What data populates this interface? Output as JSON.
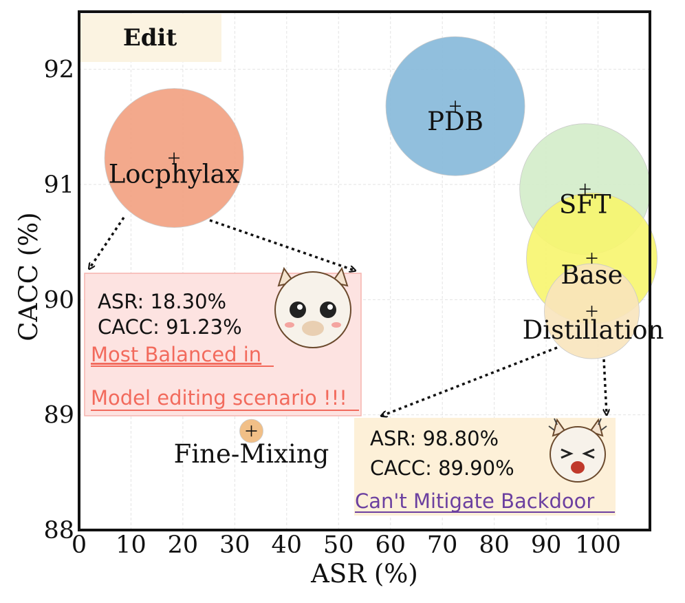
{
  "chart_data": {
    "type": "scatter",
    "title": "Edit",
    "xlabel": "ASR (%)",
    "ylabel": "CACC (%)",
    "xlim": [
      0,
      110
    ],
    "ylim": [
      88,
      92.5
    ],
    "xticks": [
      "0",
      "10",
      "20",
      "30",
      "40",
      "50",
      "60",
      "70",
      "80",
      "90",
      "100"
    ],
    "yticks": [
      "88",
      "89",
      "90",
      "91",
      "92"
    ],
    "grid": true,
    "points": [
      {
        "name": "Locphylax",
        "x": 18.3,
        "y": 91.23,
        "color": "#f2a07f",
        "size": "large"
      },
      {
        "name": "PDB",
        "x": 72.5,
        "y": 91.68,
        "color": "#85b8d9",
        "size": "large"
      },
      {
        "name": "SFT",
        "x": 97.5,
        "y": 90.96,
        "color": "#d3ecc9",
        "size": "medium"
      },
      {
        "name": "Base",
        "x": 98.8,
        "y": 90.36,
        "color": "#f7f56e",
        "size": "medium"
      },
      {
        "name": "Distillation",
        "x": 98.8,
        "y": 89.9,
        "color": "#f8e4bd",
        "size": "small"
      },
      {
        "name": "Fine-Mixing",
        "x": 33.2,
        "y": 88.86,
        "color": "#f0b87a",
        "size": "tiny"
      }
    ],
    "annotations": [
      {
        "id": "locphylax-box",
        "lines": [
          "ASR: 18.30%",
          "CACC: 91.23%"
        ],
        "highlight": [
          "Most Balanced in",
          "Model editing scenario !!!"
        ],
        "highlight_color": "#f26a5c"
      },
      {
        "id": "distillation-box",
        "lines": [
          "ASR:  98.80%",
          "CACC:  89.90%"
        ],
        "highlight": [
          "Can't Mitigate Backdoor"
        ],
        "highlight_color": "#6b3fa0"
      }
    ]
  }
}
